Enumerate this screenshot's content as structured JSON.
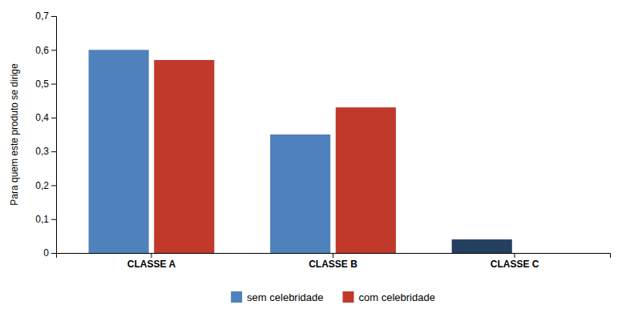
{
  "chart_data": {
    "type": "bar",
    "ylabel": "Para quem este produto se dirige",
    "categories": [
      "CLASSE A",
      "CLASSE B",
      "CLASSE C"
    ],
    "series": [
      {
        "name": "sem celebridade",
        "color": "#4F81BD",
        "colors": [
          "#4F81BD",
          "#4F81BD",
          "#243F60"
        ],
        "values": [
          0.6,
          0.35,
          0.04
        ]
      },
      {
        "name": "com celebridade",
        "color": "#C0392B",
        "values": [
          0.57,
          0.43,
          0.0
        ]
      }
    ],
    "ylim": [
      0,
      0.7
    ],
    "yticks": [
      0,
      {
        "value": 0.1,
        "label": "0,1"
      },
      {
        "value": 0.2,
        "label": "0,2"
      },
      {
        "value": 0.3,
        "label": "0,3"
      },
      {
        "value": 0.4,
        "label": "0,4"
      },
      {
        "value": 0.5,
        "label": "0,5"
      },
      {
        "value": 0.6,
        "label": "0,6"
      },
      {
        "value": 0.7,
        "label": "0,7"
      }
    ],
    "grid": false,
    "legend": "bottom"
  }
}
